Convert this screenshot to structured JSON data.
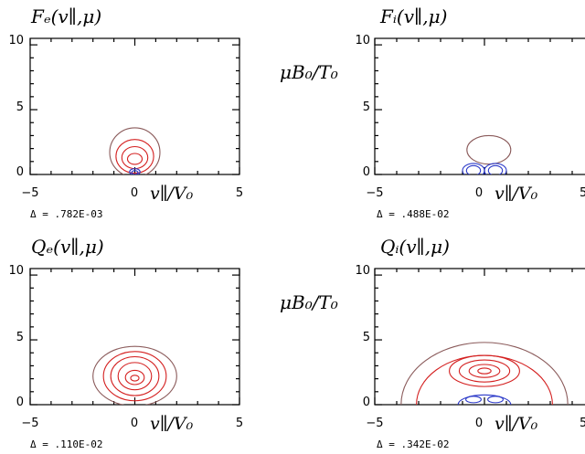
{
  "ylabel": "μB₀/T₀",
  "colors": {
    "outer": "#8a5a5a",
    "positive": "#d42020",
    "negative": "#2a38c8"
  },
  "chart_data": [
    {
      "type": "contour",
      "title": "Fₑ(v∥,μ)",
      "xlabel": "v∥/V₀",
      "xticks": [
        "−5",
        "0",
        "5"
      ],
      "yticks": [
        "0",
        "5",
        "10"
      ],
      "xlim": [
        -5,
        5
      ],
      "ylim": [
        0,
        10.5
      ],
      "delta": "Δ = .782E-03",
      "contours": [
        {
          "level": "outer",
          "center": [
            0,
            1.7
          ],
          "rx": 1.2,
          "ry": 1.9
        },
        {
          "level": "positive",
          "center": [
            0,
            1.4
          ],
          "rx": 0.9,
          "ry": 1.3
        },
        {
          "level": "positive",
          "center": [
            0,
            1.3
          ],
          "rx": 0.62,
          "ry": 0.85
        },
        {
          "level": "positive",
          "center": [
            0,
            1.2
          ],
          "rx": 0.35,
          "ry": 0.42
        },
        {
          "level": "negative",
          "center": [
            0,
            0.2
          ],
          "rx": 0.25,
          "ry": 0.25
        },
        {
          "level": "negative",
          "center": [
            0,
            0.15
          ],
          "rx": 0.15,
          "ry": 0.15
        }
      ]
    },
    {
      "type": "contour",
      "title": "Fᵢ(v∥,μ)",
      "xlabel": "v∥/V₀",
      "xticks": [
        "−5",
        "0",
        "5"
      ],
      "yticks": [
        "0",
        "5",
        "10"
      ],
      "xlim": [
        -5,
        5
      ],
      "ylim": [
        0,
        10.5
      ],
      "delta": "Δ = .488E-02",
      "contours": [
        {
          "level": "outer",
          "center": [
            0.2,
            1.9
          ],
          "rx": 1.0,
          "ry": 1.1
        },
        {
          "level": "negative",
          "center": [
            -0.5,
            0.3
          ],
          "rx": 0.5,
          "ry": 0.55
        },
        {
          "level": "negative",
          "center": [
            -0.5,
            0.3
          ],
          "rx": 0.32,
          "ry": 0.38
        },
        {
          "level": "negative",
          "center": [
            0.5,
            0.3
          ],
          "rx": 0.5,
          "ry": 0.55
        },
        {
          "level": "negative",
          "center": [
            0.5,
            0.3
          ],
          "rx": 0.32,
          "ry": 0.38
        }
      ]
    },
    {
      "type": "contour",
      "title": "Qₑ(v∥,μ)",
      "xlabel": "v∥/V₀",
      "xticks": [
        "−5",
        "0",
        "5"
      ],
      "yticks": [
        "0",
        "5",
        "10"
      ],
      "xlim": [
        -5,
        5
      ],
      "ylim": [
        0,
        10.5
      ],
      "delta": "Δ = .110E-02",
      "contours": [
        {
          "level": "outer",
          "center": [
            0,
            2.2
          ],
          "rx": 2.0,
          "ry": 2.3
        },
        {
          "level": "positive",
          "center": [
            0,
            2.2
          ],
          "rx": 1.5,
          "ry": 1.9
        },
        {
          "level": "positive",
          "center": [
            0,
            2.2
          ],
          "rx": 1.15,
          "ry": 1.5
        },
        {
          "level": "positive",
          "center": [
            0,
            2.2
          ],
          "rx": 0.8,
          "ry": 1.05
        },
        {
          "level": "positive",
          "center": [
            0,
            2.1
          ],
          "rx": 0.45,
          "ry": 0.55
        },
        {
          "level": "positive",
          "center": [
            0,
            2.05
          ],
          "rx": 0.2,
          "ry": 0.22
        }
      ]
    },
    {
      "type": "contour",
      "title": "Qᵢ(v∥,μ)",
      "xlabel": "v∥/V₀",
      "xticks": [
        "−5",
        "0",
        "5"
      ],
      "yticks": [
        "0",
        "5",
        "10"
      ],
      "xlim": [
        -5,
        5
      ],
      "ylim": [
        0,
        10.5
      ],
      "delta": "Δ = .342E-02",
      "contours": [
        {
          "level": "outer",
          "center": [
            0,
            0
          ],
          "rx": 3.8,
          "ry": 4.8
        },
        {
          "level": "positive",
          "center": [
            0,
            0
          ],
          "rx": 3.1,
          "ry": 3.8
        },
        {
          "level": "positive",
          "center": [
            0,
            2.6
          ],
          "rx": 1.6,
          "ry": 1.2
        },
        {
          "level": "positive",
          "center": [
            0,
            2.6
          ],
          "rx": 1.15,
          "ry": 0.85
        },
        {
          "level": "positive",
          "center": [
            0,
            2.6
          ],
          "rx": 0.7,
          "ry": 0.5
        },
        {
          "level": "positive",
          "center": [
            0,
            2.6
          ],
          "rx": 0.3,
          "ry": 0.22
        },
        {
          "level": "negative",
          "center": [
            0,
            0
          ],
          "rx": 1.2,
          "ry": 0.75
        },
        {
          "level": "negative",
          "center": [
            -0.5,
            0.4
          ],
          "rx": 0.35,
          "ry": 0.25
        },
        {
          "level": "negative",
          "center": [
            0.5,
            0.4
          ],
          "rx": 0.35,
          "ry": 0.25
        }
      ]
    }
  ]
}
